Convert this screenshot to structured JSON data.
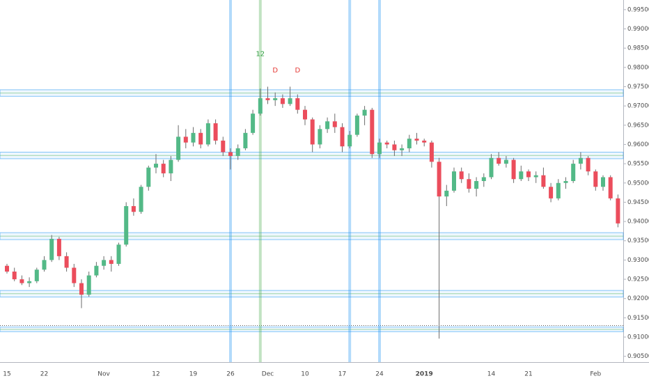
{
  "chart_data": {
    "type": "candlestick",
    "categories": [
      "15",
      null,
      null,
      null,
      null,
      "22",
      null,
      null,
      null,
      null,
      null,
      null,
      null,
      "Nov",
      null,
      null,
      null,
      null,
      null,
      null,
      "12",
      null,
      null,
      null,
      null,
      "19",
      null,
      null,
      null,
      null,
      "26",
      null,
      null,
      null,
      null,
      "Dec",
      null,
      null,
      null,
      null,
      "10",
      null,
      null,
      null,
      null,
      "17",
      null,
      null,
      null,
      null,
      "24",
      null,
      null,
      null,
      null,
      null,
      "2019",
      null,
      null,
      null,
      null,
      null,
      null,
      null,
      null,
      "14",
      null,
      null,
      null,
      null,
      "21",
      null,
      null,
      null,
      null,
      null,
      null,
      null,
      null,
      "Feb",
      null,
      null,
      null
    ],
    "open": [
      0.9285,
      0.927,
      0.925,
      0.924,
      0.9245,
      0.9275,
      0.93,
      0.9355,
      0.931,
      0.928,
      0.924,
      0.921,
      0.926,
      0.9285,
      0.93,
      0.929,
      0.934,
      0.944,
      0.9425,
      0.949,
      0.954,
      0.955,
      0.9525,
      0.956,
      0.962,
      0.9605,
      0.963,
      0.96,
      0.9655,
      0.961,
      0.958,
      0.957,
      0.959,
      0.963,
      0.968,
      0.972,
      0.9715,
      0.972,
      0.9705,
      0.972,
      0.969,
      0.9665,
      0.96,
      0.964,
      0.966,
      0.9645,
      0.9595,
      0.9625,
      0.9675,
      0.969,
      0.9575,
      0.9605,
      0.96,
      0.9585,
      0.959,
      0.9615,
      0.961,
      0.9605,
      0.9555,
      0.9465,
      0.948,
      0.953,
      0.951,
      0.9485,
      0.9505,
      0.9515,
      0.9565,
      0.955,
      0.956,
      0.951,
      0.953,
      0.9515,
      0.952,
      0.949,
      0.946,
      0.95,
      0.9505,
      0.955,
      0.9565,
      0.953,
      0.949,
      0.9515,
      0.946
    ],
    "high": [
      0.929,
      0.928,
      0.926,
      0.9255,
      0.928,
      0.931,
      0.9365,
      0.936,
      0.932,
      0.929,
      0.925,
      0.927,
      0.9295,
      0.931,
      0.931,
      0.9345,
      0.945,
      0.946,
      0.9495,
      0.9545,
      0.9575,
      0.956,
      0.957,
      0.965,
      0.964,
      0.9645,
      0.964,
      0.9665,
      0.9665,
      0.962,
      0.959,
      0.96,
      0.964,
      0.969,
      0.9745,
      0.975,
      0.9735,
      0.973,
      0.975,
      0.973,
      0.97,
      0.967,
      0.965,
      0.967,
      0.968,
      0.9655,
      0.9635,
      0.968,
      0.97,
      0.9695,
      0.9615,
      0.961,
      0.961,
      0.96,
      0.9625,
      0.963,
      0.9615,
      0.961,
      0.9565,
      0.9495,
      0.954,
      0.954,
      0.9525,
      0.9515,
      0.9525,
      0.9575,
      0.958,
      0.957,
      0.9565,
      0.9545,
      0.9535,
      0.953,
      0.954,
      0.95,
      0.951,
      0.9515,
      0.956,
      0.958,
      0.957,
      0.9535,
      0.952,
      0.952,
      0.947
    ],
    "low": [
      0.9265,
      0.9245,
      0.9235,
      0.923,
      0.924,
      0.927,
      0.9295,
      0.93,
      0.927,
      0.923,
      0.9175,
      0.9205,
      0.9255,
      0.9275,
      0.927,
      0.9285,
      0.9335,
      0.9415,
      0.942,
      0.948,
      0.9525,
      0.9515,
      0.9505,
      0.9555,
      0.959,
      0.9595,
      0.959,
      0.9595,
      0.96,
      0.957,
      0.9535,
      0.956,
      0.9585,
      0.9625,
      0.9675,
      0.9705,
      0.97,
      0.9695,
      0.97,
      0.968,
      0.965,
      0.958,
      0.959,
      0.963,
      0.963,
      0.958,
      0.959,
      0.962,
      0.965,
      0.9565,
      0.9565,
      0.959,
      0.957,
      0.957,
      0.958,
      0.96,
      0.9595,
      0.954,
      0.9096,
      0.944,
      0.9475,
      0.95,
      0.9475,
      0.9465,
      0.949,
      0.951,
      0.9545,
      0.954,
      0.95,
      0.9505,
      0.9505,
      0.95,
      0.9485,
      0.945,
      0.9455,
      0.9485,
      0.95,
      0.9535,
      0.952,
      0.948,
      0.948,
      0.9455,
      0.9385
    ],
    "close": [
      0.927,
      0.925,
      0.924,
      0.9245,
      0.9275,
      0.93,
      0.9355,
      0.931,
      0.928,
      0.924,
      0.921,
      0.926,
      0.9285,
      0.93,
      0.929,
      0.934,
      0.944,
      0.9425,
      0.949,
      0.954,
      0.955,
      0.9525,
      0.956,
      0.962,
      0.9605,
      0.963,
      0.96,
      0.9655,
      0.961,
      0.958,
      0.957,
      0.959,
      0.963,
      0.968,
      0.972,
      0.9715,
      0.972,
      0.9705,
      0.972,
      0.969,
      0.9665,
      0.96,
      0.964,
      0.966,
      0.9645,
      0.9595,
      0.9625,
      0.9675,
      0.969,
      0.9575,
      0.9605,
      0.96,
      0.9585,
      0.959,
      0.9615,
      0.961,
      0.9605,
      0.9555,
      0.9465,
      0.948,
      0.953,
      0.951,
      0.9485,
      0.9505,
      0.9515,
      0.9565,
      0.955,
      0.956,
      0.951,
      0.953,
      0.9515,
      0.952,
      0.949,
      0.946,
      0.95,
      0.9505,
      0.955,
      0.9565,
      0.953,
      0.949,
      0.9515,
      0.946,
      0.9395
    ],
    "up_color": "#53b987",
    "down_color": "#eb4d5c",
    "wick_color": "#6b6b6b",
    "ylim": [
      0.9035,
      0.9975
    ],
    "yticks": [
      {
        "value": 0.905,
        "label": "0.90500"
      },
      {
        "value": 0.91,
        "label": "0.91000"
      },
      {
        "value": 0.915,
        "label": "0.91500"
      },
      {
        "value": 0.92,
        "label": "0.92000"
      },
      {
        "value": 0.925,
        "label": "0.92500"
      },
      {
        "value": 0.93,
        "label": "0.93000"
      },
      {
        "value": 0.935,
        "label": "0.93500"
      },
      {
        "value": 0.94,
        "label": "0.94000"
      },
      {
        "value": 0.945,
        "label": "0.94500"
      },
      {
        "value": 0.95,
        "label": "0.95000"
      },
      {
        "value": 0.955,
        "label": "0.95500"
      },
      {
        "value": 0.96,
        "label": "0.96000"
      },
      {
        "value": 0.965,
        "label": "0.96500"
      },
      {
        "value": 0.97,
        "label": "0.97000"
      },
      {
        "value": 0.975,
        "label": "0.97500"
      },
      {
        "value": 0.98,
        "label": "0.98000"
      },
      {
        "value": 0.985,
        "label": "0.98500"
      },
      {
        "value": 0.99,
        "label": "0.99000"
      },
      {
        "value": 0.995,
        "label": "0.99500"
      }
    ],
    "zones": [
      {
        "range": [
          0.9725,
          0.9742
        ],
        "color": "#2196f3"
      },
      {
        "range": [
          0.9563,
          0.958
        ],
        "color": "#2196f3"
      },
      {
        "range": [
          0.9353,
          0.9371
        ],
        "color": "#2196f3"
      },
      {
        "range": [
          0.9204,
          0.9221
        ],
        "color": "#2196f3"
      },
      {
        "range": [
          0.9114,
          0.9126
        ],
        "color": "#2196f3"
      }
    ],
    "dotted_lines": [
      0.913
    ],
    "vlines": [
      {
        "index": 30,
        "color": "#2196f3"
      },
      {
        "index": 34,
        "color": "#4caf50"
      },
      {
        "index": 46,
        "color": "#2196f3"
      },
      {
        "index": 50,
        "color": "#2196f3"
      }
    ],
    "annotations": [
      {
        "text": "12",
        "index": 34,
        "y": 0.9835,
        "color": "#2e9e3e"
      },
      {
        "text": "D",
        "index": 36,
        "y": 0.9792,
        "color": "#e53935"
      },
      {
        "text": "D",
        "index": 39,
        "y": 0.9792,
        "color": "#e53935"
      }
    ]
  }
}
